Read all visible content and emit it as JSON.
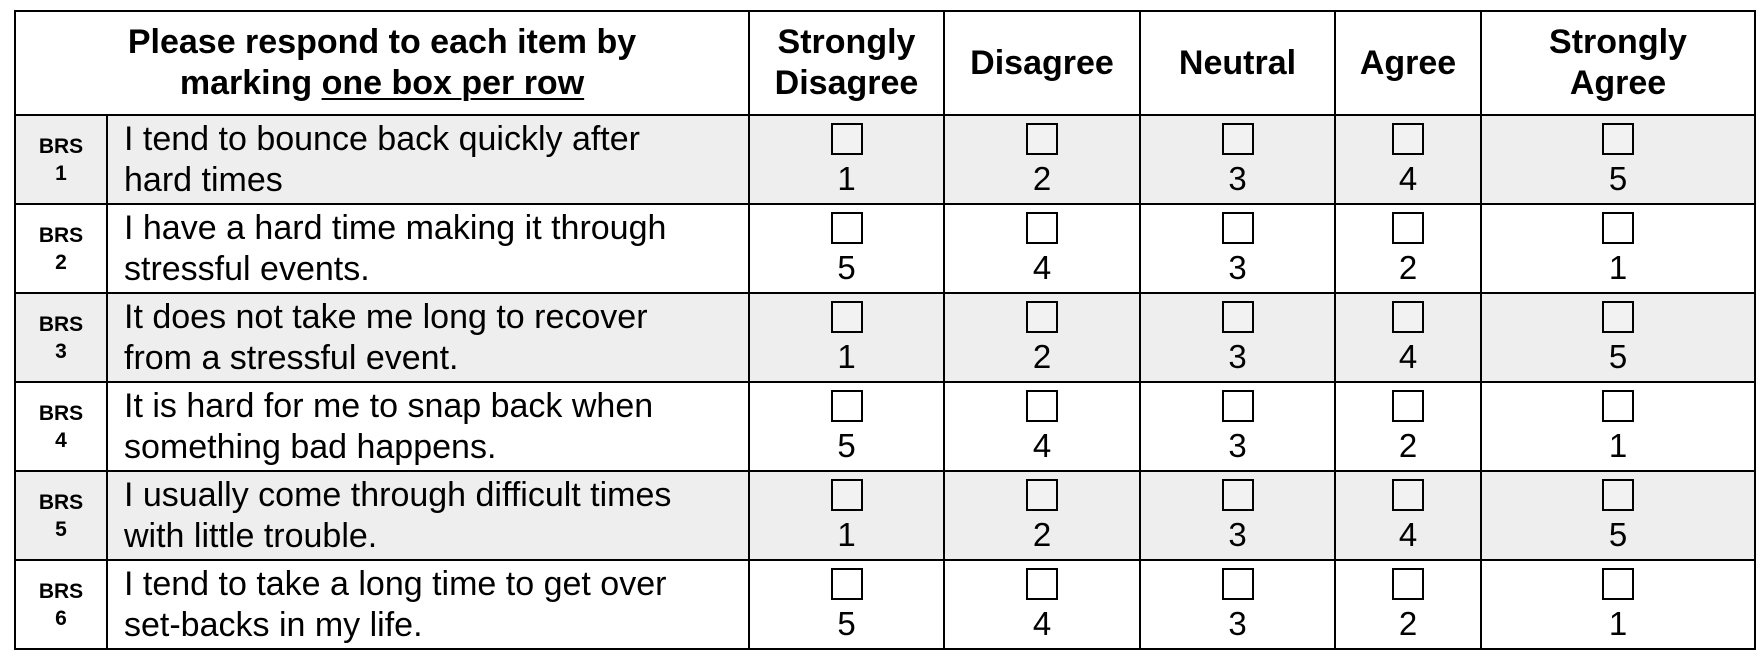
{
  "header": {
    "instruction_line1": "Please respond to each item by",
    "instruction_prefix": "marking ",
    "instruction_underlined": "one box per row",
    "columns": [
      {
        "line1": "Strongly",
        "line2": "Disagree"
      },
      {
        "line1": "Disagree",
        "line2": ""
      },
      {
        "line1": "Neutral",
        "line2": ""
      },
      {
        "line1": "Agree",
        "line2": ""
      },
      {
        "line1": "Strongly",
        "line2": "Agree"
      }
    ]
  },
  "items": [
    {
      "code": "BRS",
      "number": "1",
      "line1": "I tend to bounce back quickly after",
      "line2": "hard times",
      "scores": [
        "1",
        "2",
        "3",
        "4",
        "5"
      ]
    },
    {
      "code": "BRS",
      "number": "2",
      "line1": "I have a hard time making it through",
      "line2": "stressful events.",
      "scores": [
        "5",
        "4",
        "3",
        "2",
        "1"
      ]
    },
    {
      "code": "BRS",
      "number": "3",
      "line1": "It does not take me long to recover",
      "line2": "from a stressful event.",
      "scores": [
        "1",
        "2",
        "3",
        "4",
        "5"
      ]
    },
    {
      "code": "BRS",
      "number": "4",
      "line1": "It is hard for me to snap back when",
      "line2": "something bad happens.",
      "scores": [
        "5",
        "4",
        "3",
        "2",
        "1"
      ]
    },
    {
      "code": "BRS",
      "number": "5",
      "line1": "I usually come through difficult times",
      "line2": "with little trouble.",
      "scores": [
        "1",
        "2",
        "3",
        "4",
        "5"
      ]
    },
    {
      "code": "BRS",
      "number": "6",
      "line1": "I tend to take a long time to get over",
      "line2": "set-backs in my life.",
      "scores": [
        "5",
        "4",
        "3",
        "2",
        "1"
      ]
    }
  ],
  "colors": {
    "shaded_row": "#eeeeee",
    "border": "#000000"
  }
}
